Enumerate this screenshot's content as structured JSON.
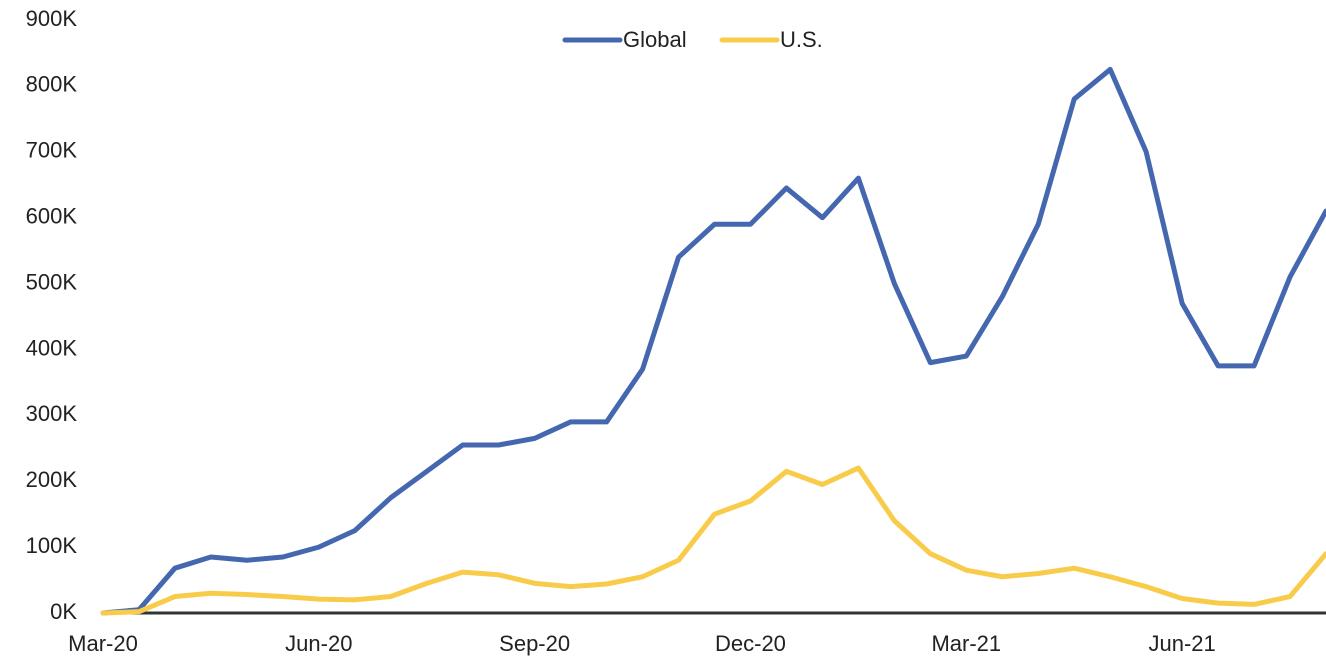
{
  "chart_data": {
    "type": "line",
    "categories": [
      "Mar-20",
      null,
      null,
      null,
      null,
      null,
      "Jun-20",
      null,
      null,
      null,
      null,
      null,
      "Sep-20",
      null,
      null,
      null,
      null,
      null,
      "Dec-20",
      null,
      null,
      null,
      null,
      null,
      "Mar-21",
      null,
      null,
      null,
      null,
      null,
      "Jun-21",
      null,
      null,
      null,
      null
    ],
    "series": [
      {
        "name": "Global",
        "color": "#4467b0",
        "values": [
          0,
          5000,
          68000,
          85000,
          80000,
          85000,
          100000,
          125000,
          175000,
          215000,
          255000,
          255000,
          265000,
          290000,
          290000,
          370000,
          540000,
          590000,
          590000,
          645000,
          600000,
          660000,
          500000,
          380000,
          390000,
          480000,
          590000,
          780000,
          825000,
          700000,
          470000,
          375000,
          375000,
          510000,
          610000
        ]
      },
      {
        "name": "U.S.",
        "color": "#f8cc4a",
        "values": [
          0,
          2000,
          25000,
          30000,
          28000,
          25000,
          21000,
          20000,
          25000,
          45000,
          62000,
          58000,
          45000,
          40000,
          44000,
          55000,
          80000,
          150000,
          170000,
          215000,
          195000,
          220000,
          140000,
          90000,
          65000,
          55000,
          60000,
          68000,
          55000,
          40000,
          22000,
          15000,
          13000,
          25000,
          90000
        ]
      }
    ],
    "ylim": [
      0,
      900000
    ],
    "yticks": [
      {
        "value": 0,
        "label": "0K"
      },
      {
        "value": 100000,
        "label": "100K"
      },
      {
        "value": 200000,
        "label": "200K"
      },
      {
        "value": 300000,
        "label": "300K"
      },
      {
        "value": 400000,
        "label": "400K"
      },
      {
        "value": 500000,
        "label": "500K"
      },
      {
        "value": 600000,
        "label": "600K"
      },
      {
        "value": 700000,
        "label": "700K"
      },
      {
        "value": 800000,
        "label": "800K"
      },
      {
        "value": 900000,
        "label": "900K"
      }
    ],
    "grid": false,
    "legend": "top"
  }
}
